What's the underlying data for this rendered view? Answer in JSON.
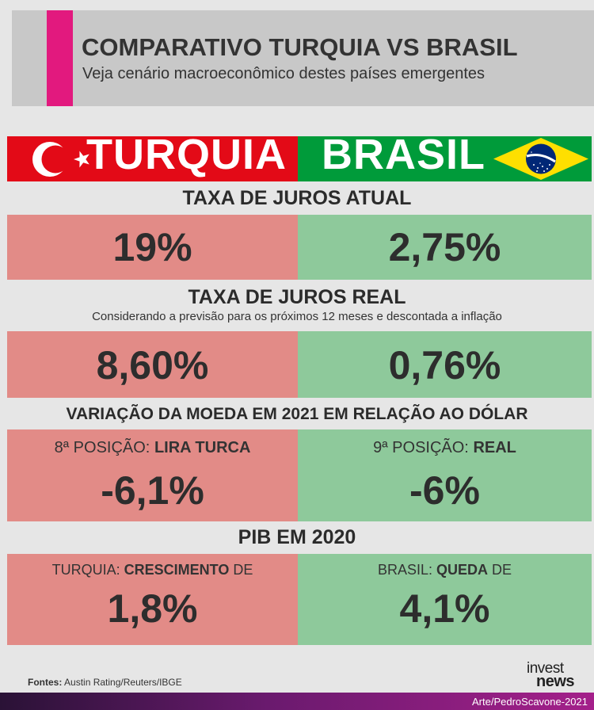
{
  "header": {
    "title": "COMPARATIVO TURQUIA VS BRASIL",
    "subtitle": "Veja cenário macroeconômico destes países emergentes",
    "accent_color": "#e2197e"
  },
  "countries": {
    "turkey": {
      "name": "TURQUIA",
      "color": "#e30a17"
    },
    "brazil": {
      "name": "BRASIL",
      "color": "#009b3a"
    }
  },
  "sections": {
    "juros_atual": {
      "title": "TAXA DE JUROS ATUAL",
      "turkey": "19%",
      "brazil": "2,75%"
    },
    "juros_real": {
      "title": "TAXA DE JUROS REAL",
      "note": "Considerando a previsão para os próximos 12 meses e descontada a inflação",
      "turkey": "8,60%",
      "brazil": "0,76%"
    },
    "moeda": {
      "title": "VARIAÇÃO DA MOEDA EM 2021 EM RELAÇÃO AO DÓLAR",
      "turkey_position": "8ª POSIÇÃO:",
      "turkey_currency": "LIRA TURCA",
      "turkey": "-6,1%",
      "brazil_position": "9ª POSIÇÃO:",
      "brazil_currency": "REAL",
      "brazil": "-6%"
    },
    "pib": {
      "title": "PIB EM 2020",
      "turkey_prefix": "TURQUIA:",
      "turkey_kind": "CRESCIMENTO",
      "turkey_suffix": "DE",
      "turkey": "1,8%",
      "brazil_prefix": "BRASIL:",
      "brazil_kind": "QUEDA",
      "brazil_suffix": "DE",
      "brazil": "4,1%"
    }
  },
  "footer": {
    "sources_label": "Fontes:",
    "sources": "Austin Rating/Reuters/IBGE",
    "logo_line1": "invest",
    "logo_line2": "news",
    "credit": "Arte/PedroScavone-2021"
  }
}
